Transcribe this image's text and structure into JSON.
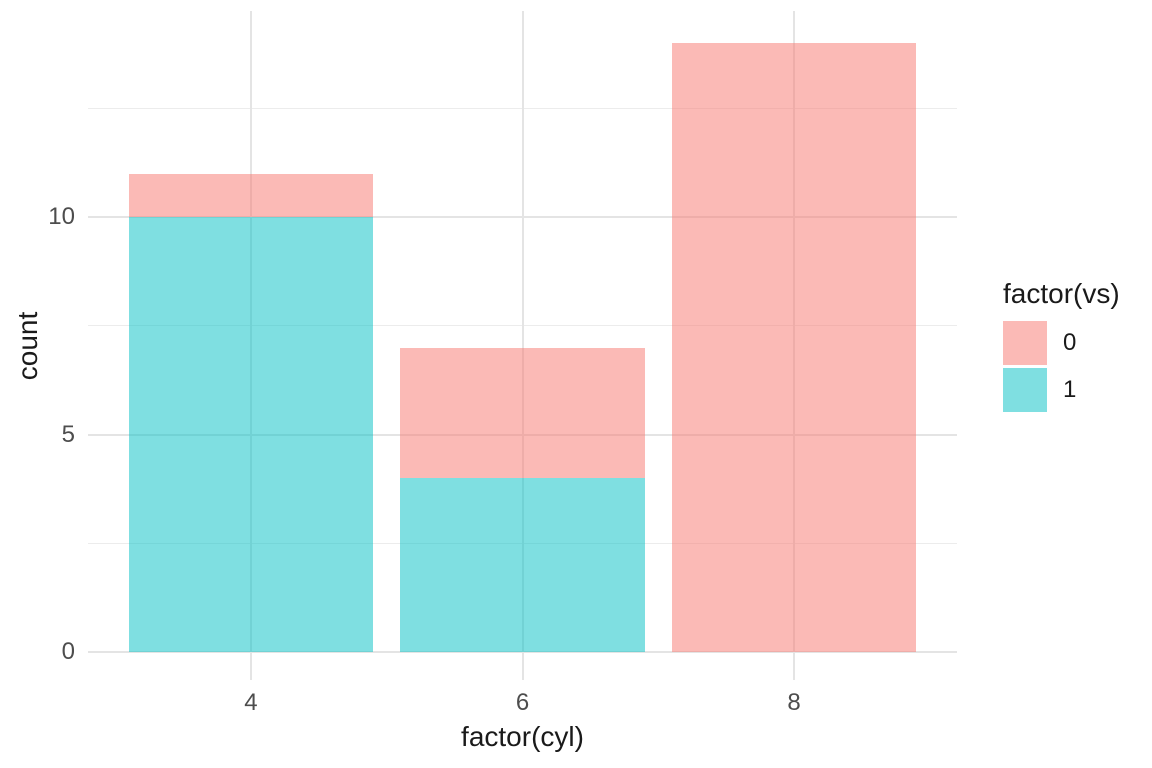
{
  "chart_data": {
    "type": "bar",
    "stacked": true,
    "title": "",
    "xlabel": "factor(cyl)",
    "ylabel": "count",
    "categories": [
      "4",
      "6",
      "8"
    ],
    "series": [
      {
        "name": "0",
        "fill": "rgba(248,118,109,0.5)",
        "values": [
          1,
          3,
          14
        ]
      },
      {
        "name": "1",
        "fill": "rgba(0,191,196,0.5)",
        "values": [
          10,
          4,
          0
        ]
      }
    ],
    "stack_totals": [
      11,
      7,
      14
    ],
    "stack_order_bottom_to_top": [
      "1",
      "0"
    ],
    "ylim": [
      0,
      14.7
    ],
    "yticks": [
      0,
      5,
      10
    ],
    "yminor": [
      2.5,
      7.5,
      12.5
    ],
    "grid": "major-and-minor",
    "legend_position": "right"
  },
  "legend": {
    "title": "factor(vs)",
    "items": [
      {
        "label": "0"
      },
      {
        "label": "1"
      }
    ]
  },
  "colors": {
    "vs0_fill_base": "#F8766D",
    "vs1_fill_base": "#00BFC4",
    "fill_alpha": "0.5",
    "grid_major": "#E4E4E4",
    "grid_minor": "#ECECEC",
    "tick_text": "#4D4D4D",
    "title_text": "#1A1A1A",
    "background": "#FFFFFF"
  }
}
